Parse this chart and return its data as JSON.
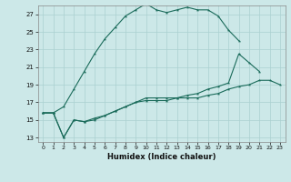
{
  "xlabel": "Humidex (Indice chaleur)",
  "background_color": "#cce8e8",
  "grid_color": "#aad0d0",
  "line_color": "#1a6b5a",
  "xlim": [
    -0.5,
    23.5
  ],
  "ylim": [
    12.5,
    28.0
  ],
  "xticks": [
    0,
    1,
    2,
    3,
    4,
    5,
    6,
    7,
    8,
    9,
    10,
    11,
    12,
    13,
    14,
    15,
    16,
    17,
    18,
    19,
    20,
    21,
    22,
    23
  ],
  "yticks": [
    13,
    15,
    17,
    19,
    21,
    23,
    25,
    27
  ],
  "line1": {
    "x": [
      0,
      1,
      2,
      3,
      4,
      5,
      6,
      7,
      8,
      9,
      10,
      11,
      12,
      13,
      14,
      15,
      16,
      17,
      18,
      19
    ],
    "y": [
      15.8,
      15.8,
      16.5,
      18.5,
      20.5,
      22.5,
      24.2,
      25.5,
      26.8,
      27.5,
      28.2,
      27.5,
      27.2,
      27.5,
      27.8,
      27.5,
      27.5,
      26.8,
      25.2,
      24.0
    ]
  },
  "line2": {
    "x": [
      0,
      1,
      2,
      3,
      4,
      5,
      6,
      7,
      8,
      9,
      10,
      11,
      12,
      13,
      14,
      15,
      16,
      17,
      18,
      19,
      20,
      21
    ],
    "y": [
      15.8,
      15.8,
      13.0,
      15.0,
      14.8,
      15.2,
      15.5,
      16.0,
      16.5,
      17.0,
      17.5,
      17.5,
      17.5,
      17.5,
      17.8,
      18.0,
      18.5,
      18.8,
      19.2,
      22.5,
      21.5,
      20.5
    ]
  },
  "line3": {
    "x": [
      0,
      1,
      2,
      3,
      4,
      5,
      6,
      7,
      8,
      9,
      10,
      11,
      12,
      13,
      14,
      15,
      16,
      17,
      18,
      19,
      20,
      21,
      22,
      23
    ],
    "y": [
      15.8,
      15.8,
      13.0,
      15.0,
      14.8,
      15.0,
      15.5,
      16.0,
      16.5,
      17.0,
      17.2,
      17.2,
      17.2,
      17.5,
      17.5,
      17.5,
      17.8,
      18.0,
      18.5,
      18.8,
      19.0,
      19.5,
      19.5,
      19.0
    ]
  },
  "figsize": [
    3.2,
    2.0
  ],
  "dpi": 100
}
